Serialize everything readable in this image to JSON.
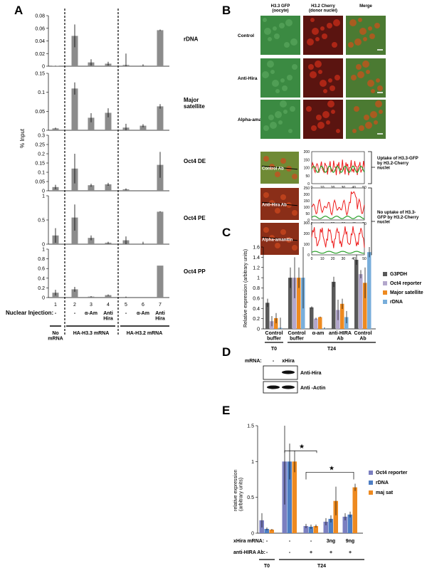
{
  "panel_letters": {
    "A": "A",
    "B": "B",
    "C": "C",
    "D": "D",
    "E": "E"
  },
  "panel_a": {
    "y_axis_title": "% Input",
    "nuclear_injection_label": "Nuclear Injection:",
    "lane_numbers": [
      "1",
      "2",
      "3",
      "4",
      "5",
      "6",
      "7"
    ],
    "treatments": [
      "-",
      "-",
      "α-Am",
      "Anti\nHira",
      "-",
      "α-Am",
      "Anti\nHira"
    ],
    "group_labels": [
      "No\nmRNA",
      "HA-H3.3 mRNA",
      "HA-H3.2 mRNA"
    ]
  },
  "panel_b": {
    "column_headers": [
      "H3.3 GFP\n(oocyte)",
      "H3.2 Cherry\n(donor nuclei)",
      "Merge"
    ],
    "row_labels": [
      "Control",
      "Anti-Hira",
      "Alpha-amanitin"
    ],
    "profile_labels": [
      "Control Ab",
      "Anti-Hira Ab",
      "Alpha-amanitin"
    ],
    "annotations": [
      "Uptake of H3.3-GFP\nby H3.2-Cherry\nnuclei",
      "No uptake of H3.3-\nGFP by H3.2-Cherry\nnuclei"
    ],
    "profile_y_ticks": [
      [
        "200",
        "150",
        "100",
        "50",
        "0"
      ],
      [
        "250",
        "200",
        "150",
        "100",
        "50",
        "0"
      ],
      [
        "300",
        "200",
        "100",
        "0"
      ]
    ],
    "profile_x_ticks": [
      "0",
      "10",
      "20",
      "30",
      "40",
      "50"
    ]
  },
  "panel_d": {
    "mrna_label": "mRNA:",
    "lanes": [
      "-",
      "xHira"
    ],
    "blots": [
      "Anti-Hira",
      "Anti -Actin"
    ]
  },
  "colors": {
    "panel_a_bar": "#8c8c8c",
    "G3PDH": "#595959",
    "Oct4 reporter": "#b3a7cc",
    "Major satellite": "#ee8a20",
    "rDNA": "#78aedb",
    "E_oct4": "#7b7fc0",
    "E_rdna": "#4d7ec4",
    "E_majsat": "#ee8a20",
    "profile_red": "#ee1b1b",
    "profile_green": "#2aa12a"
  },
  "chart_data": [
    {
      "panel": "A",
      "type": "bar",
      "target": "rDNA",
      "ylim": [
        0,
        0.08
      ],
      "yticks": [
        "0",
        "0.02",
        "0.04",
        "0.06",
        "0.08"
      ],
      "categories": [
        "1",
        "2",
        "3",
        "4",
        "5",
        "6",
        "7"
      ],
      "values": [
        0.0005,
        0.048,
        0.006,
        0.004,
        0.002,
        0.001,
        0.057
      ],
      "errors": [
        0.0003,
        0.018,
        0.005,
        0.003,
        0.018,
        0.002,
        0.001
      ]
    },
    {
      "panel": "A",
      "type": "bar",
      "target": "Major\nsatellite",
      "ylim": [
        0,
        0.15
      ],
      "yticks": [
        "0",
        "0.05",
        "0.1",
        "0.15"
      ],
      "categories": [
        "1",
        "2",
        "3",
        "4",
        "5",
        "6",
        "7"
      ],
      "values": [
        0.005,
        0.11,
        0.033,
        0.046,
        0.007,
        0.012,
        0.063
      ],
      "errors": [
        0.002,
        0.016,
        0.012,
        0.012,
        0.01,
        0.004,
        0.006
      ]
    },
    {
      "panel": "A",
      "type": "bar",
      "target": "Oct4 DE",
      "ylim": [
        0,
        0.3
      ],
      "yticks": [
        "0",
        "0.05",
        "0.1",
        "0.15",
        "0.2",
        "0.25",
        "0.3"
      ],
      "categories": [
        "1",
        "2",
        "3",
        "4",
        "5",
        "6",
        "7"
      ],
      "values": [
        0.02,
        0.12,
        0.03,
        0.035,
        0.008,
        0.0,
        0.14
      ],
      "errors": [
        0.012,
        0.08,
        0.008,
        0.008,
        0.005,
        0.0,
        0.07
      ]
    },
    {
      "panel": "A",
      "type": "bar",
      "target": "Oct4 PE",
      "ylim": [
        0,
        1
      ],
      "yticks": [
        "0",
        "0.5",
        "1"
      ],
      "categories": [
        "1",
        "2",
        "3",
        "4",
        "5",
        "6",
        "7"
      ],
      "values": [
        0.18,
        0.55,
        0.13,
        0.03,
        0.08,
        0.0,
        0.67
      ],
      "errors": [
        0.15,
        0.27,
        0.05,
        0.02,
        0.08,
        0.05,
        0.01
      ]
    },
    {
      "panel": "A",
      "type": "bar",
      "target": "Oct4 PP",
      "ylim": [
        0,
        1
      ],
      "yticks": [
        "0",
        "0.2",
        "0.4",
        "0.6",
        "0.8",
        "1"
      ],
      "categories": [
        "1",
        "2",
        "3",
        "4",
        "5",
        "6",
        "7"
      ],
      "values": [
        0.1,
        0.17,
        0.02,
        0.05,
        0.0,
        0.0,
        0.66
      ],
      "errors": [
        0.06,
        0.05,
        0.01,
        0.015,
        0.02,
        0.0,
        0.0
      ]
    },
    {
      "panel": "C",
      "type": "bar",
      "ylabel": "Relative expression (arbitrary units)",
      "ylim": [
        0,
        1.6
      ],
      "yticks": [
        "0",
        "0.2",
        "0.4",
        "0.6",
        "0.8",
        "1",
        "1.2",
        "1.4",
        "1.6"
      ],
      "categories": [
        "Control\nbuffer",
        "Control\nbuffer",
        "α-am",
        "anti-HIRA\nAb",
        "Control\nAb"
      ],
      "group_labels": [
        "T0",
        "T24"
      ],
      "legend_position": "right",
      "series": [
        {
          "name": "G3PDH",
          "values": [
            0.51,
            1.0,
            0.42,
            0.92,
            1.35
          ],
          "errors": [
            0.08,
            0.2,
            0.02,
            0.1,
            0.1
          ]
        },
        {
          "name": "Oct4 reporter",
          "values": [
            0.15,
            1.0,
            0.2,
            0.37,
            1.07
          ],
          "errors": [
            0.1,
            0.4,
            0.02,
            0.2,
            0.08
          ]
        },
        {
          "name": "Major satellite",
          "values": [
            0.21,
            1.0,
            0.23,
            0.49,
            0.9
          ],
          "errors": [
            0.1,
            0.2,
            0.01,
            0.1,
            0.3
          ]
        },
        {
          "name": "rDNA",
          "values": [
            0.02,
            1.0,
            0.01,
            0.23,
            1.5
          ],
          "errors": [
            0.2,
            0.6,
            0.02,
            0.12,
            0.1
          ]
        }
      ]
    },
    {
      "panel": "E",
      "type": "bar",
      "ylabel": "relative expression\n(arbitrary units)",
      "ylim": [
        0,
        1.5
      ],
      "yticks": [
        "0",
        "0.5",
        "1",
        "1.5"
      ],
      "row_labels": [
        "xHira mRNA:",
        "anti-HIRA Ab:"
      ],
      "xhira_row": [
        "-",
        "-",
        "-",
        "3ng",
        "9ng"
      ],
      "anti_hira_row": [
        "-",
        "-",
        "+",
        "+",
        "+"
      ],
      "group_labels": [
        "T0",
        "T24"
      ],
      "star": "★",
      "legend_position": "right",
      "series": [
        {
          "name": "Oct4 reporter",
          "values": [
            0.18,
            1.0,
            0.1,
            0.16,
            0.23
          ],
          "errors": [
            0.1,
            0.6,
            0.03,
            0.05,
            0.05
          ]
        },
        {
          "name": "rDNA",
          "values": [
            0.06,
            1.0,
            0.09,
            0.2,
            0.26
          ],
          "errors": [
            0.02,
            0.25,
            0.03,
            0.05,
            0.04
          ]
        },
        {
          "name": "maj sat",
          "values": [
            0.05,
            1.0,
            0.1,
            0.45,
            0.64
          ],
          "errors": [
            0.01,
            0.15,
            0.02,
            0.2,
            0.05
          ]
        }
      ]
    }
  ]
}
